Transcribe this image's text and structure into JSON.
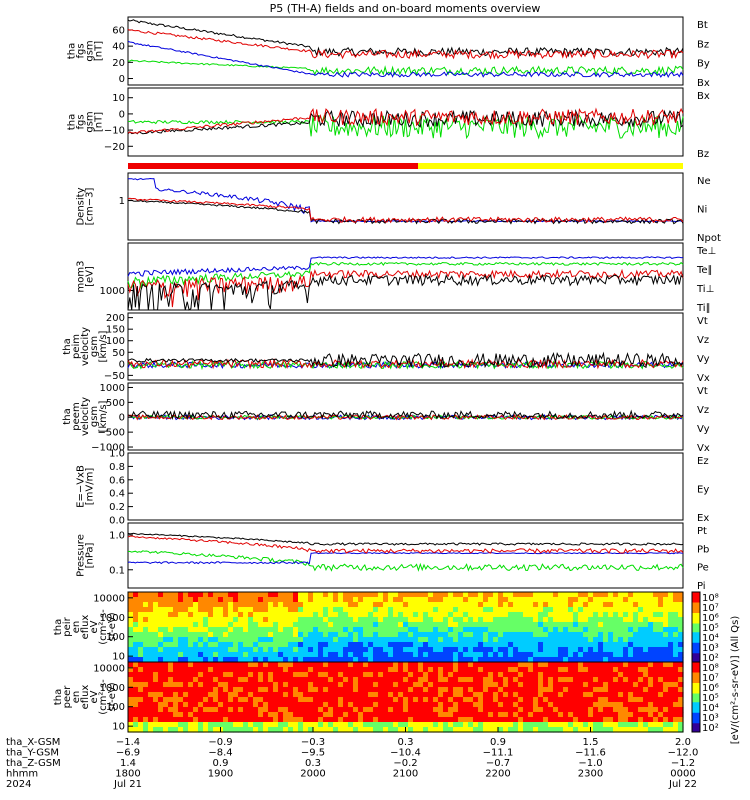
{
  "title": "P5 (TH-A) fields and on-board moments overview",
  "colors": {
    "black": "#000000",
    "red": "#e00000",
    "green": "#00dd00",
    "blue": "#0000dd",
    "lightgreen": "#66ff66",
    "yellow": "#ffff00"
  },
  "panels": [
    {
      "id": "bgse",
      "ylabel": [
        "tha",
        "fgs",
        "gsm",
        "[nT]"
      ],
      "yticks": [
        "60",
        "40",
        "20",
        "0"
      ],
      "yrange": [
        -8,
        76
      ],
      "yvals": [
        60,
        40,
        20,
        0
      ],
      "legend": [
        {
          "name": "Bt",
          "color": "black"
        },
        {
          "name": "Bz",
          "color": "red"
        },
        {
          "name": "By",
          "color": "green"
        },
        {
          "name": "Bx",
          "color": "blue"
        }
      ]
    },
    {
      "id": "bxy",
      "ylabel": [
        "tha",
        "fgs",
        "gsm",
        "[nT]"
      ],
      "yticks": [
        "10",
        "0",
        "−10",
        "−20"
      ],
      "yrange": [
        -26,
        16
      ],
      "yvals": [
        10,
        0,
        -10,
        -20
      ],
      "legend": [
        {
          "name": "Bx",
          "color": "black"
        },
        {
          "name": "Bz",
          "color": "red"
        }
      ]
    },
    {
      "id": "density",
      "ylabel": [
        "Density",
        "[cm−3]"
      ],
      "yticks": [
        "1"
      ],
      "yrange": [
        0.1,
        5
      ],
      "log": true,
      "yvals": [
        1
      ],
      "legend": [
        {
          "name": "Ne",
          "color": "red"
        },
        {
          "name": "Ni",
          "color": "black"
        },
        {
          "name": "Npot",
          "color": "blue"
        }
      ]
    },
    {
      "id": "temp",
      "ylabel": [
        "mom3",
        "[eV]"
      ],
      "yticks": [
        "1000"
      ],
      "yrange": [
        200,
        50000
      ],
      "log": true,
      "yvals": [
        1000
      ],
      "legend": [
        {
          "name": "Te⊥",
          "color": "red"
        },
        {
          "name": "Te∥",
          "color": "black"
        },
        {
          "name": "Ti⊥",
          "color": "blue"
        },
        {
          "name": "Ti∥",
          "color": "green"
        }
      ]
    },
    {
      "id": "vi",
      "ylabel": [
        "tha",
        "peim",
        "velocity",
        "gsm",
        "[km/s]"
      ],
      "yticks": [
        "200",
        "150",
        "100",
        "50",
        "0",
        "−50"
      ],
      "yrange": [
        -70,
        220
      ],
      "yvals": [
        200,
        150,
        100,
        50,
        0,
        -50
      ],
      "legend": [
        {
          "name": "Vt",
          "color": "black"
        },
        {
          "name": "Vz",
          "color": "red"
        },
        {
          "name": "Vy",
          "color": "green"
        },
        {
          "name": "Vx",
          "color": "blue"
        }
      ]
    },
    {
      "id": "ve",
      "ylabel": [
        "tha",
        "peem",
        "velocity",
        "gsm",
        "[km/s]"
      ],
      "yticks": [
        "1000",
        "500",
        "0",
        "−500",
        "−1000"
      ],
      "yrange": [
        -1100,
        1150
      ],
      "yvals": [
        1000,
        500,
        0,
        -500,
        -1000
      ],
      "legend": [
        {
          "name": "Vt",
          "color": "black"
        },
        {
          "name": "Vz",
          "color": "red"
        },
        {
          "name": "Vy",
          "color": "green"
        },
        {
          "name": "Vx",
          "color": "blue"
        }
      ]
    },
    {
      "id": "efield",
      "ylabel": [
        "E=−VxB",
        "[mV/m]"
      ],
      "yticks": [
        "1.0",
        "0.8",
        "0.6",
        "0.4",
        "0.2",
        "0.0"
      ],
      "yrange": [
        0,
        1
      ],
      "yvals": [
        1,
        0.8,
        0.6,
        0.4,
        0.2,
        0
      ],
      "legend": [
        {
          "name": "Ez",
          "color": "red"
        },
        {
          "name": "Ey",
          "color": "green"
        },
        {
          "name": "Ex",
          "color": "blue"
        }
      ]
    },
    {
      "id": "pressure",
      "ylabel": [
        "Pressure",
        "[nPa]"
      ],
      "yticks": [
        "1.0",
        "0.1"
      ],
      "yrange": [
        0.03,
        2.2
      ],
      "log": true,
      "yvals": [
        1,
        0.1
      ],
      "legend": [
        {
          "name": "Pt",
          "color": "black"
        },
        {
          "name": "Pb",
          "color": "red"
        },
        {
          "name": "Pe",
          "color": "green"
        },
        {
          "name": "Pi",
          "color": "blue"
        }
      ]
    },
    {
      "id": "ionspec",
      "ylabel": [
        "tha",
        "peir",
        "en",
        "eflux",
        "eV",
        "(cm²-s-",
        "sr-eV)"
      ],
      "yticks": [
        "10000",
        "1000",
        "100",
        "10"
      ],
      "yrange": [
        5,
        20000
      ],
      "log": true,
      "yvals": [
        10000,
        1000,
        100,
        10
      ]
    },
    {
      "id": "elecspec",
      "ylabel": [
        "tha",
        "peer",
        "en",
        "eflux",
        "eV",
        "(cm²-s-",
        "sr-eV)"
      ],
      "yticks": [
        "10000",
        "1000",
        "100",
        "10"
      ],
      "yrange": [
        5,
        20000
      ],
      "log": true,
      "yvals": [
        10000,
        1000,
        100,
        10
      ]
    }
  ],
  "colorbar": {
    "label": "[eV/(cm²-s-sr-eV)] (All Qs)",
    "ticks": [
      "10⁸",
      "10⁷",
      "10⁶",
      "10⁵",
      "10⁴",
      "10³",
      "10²"
    ]
  },
  "colorbar2_ticks": [
    "10⁸",
    "10⁷",
    "10⁶",
    "10⁵",
    "10⁴",
    "10³",
    "10²"
  ],
  "xaxis": {
    "rows": [
      {
        "name": "tha_X-GSM",
        "values": [
          "−1.4",
          "−0.9",
          "−0.3",
          "0.3",
          "0.9",
          "1.5",
          "2.0"
        ]
      },
      {
        "name": "tha_Y-GSM",
        "values": [
          "−6.9",
          "−8.4",
          "−9.5",
          "−10.4",
          "−11.1",
          "−11.6",
          "−12.0"
        ]
      },
      {
        "name": "tha_Z-GSM",
        "values": [
          "1.4",
          "0.9",
          "0.3",
          "−0.2",
          "−0.7",
          "−1.0",
          "−1.2"
        ]
      },
      {
        "name": "hhmm",
        "values": [
          "1800",
          "1900",
          "2000",
          "2100",
          "2200",
          "2300",
          "0000"
        ]
      },
      {
        "name": "2024",
        "values": [
          "Jul 21",
          "",
          "",
          "",
          "",
          "",
          "Jul 22"
        ]
      }
    ]
  },
  "chart_data": {
    "type": "line",
    "title": "P5 (TH-A) fields and on-board moments overview",
    "x": [
      "1800",
      "1900",
      "2000",
      "2100",
      "2200",
      "2300",
      "0000"
    ],
    "series": [
      {
        "name": "Bt",
        "values": [
          72,
          45,
          35,
          30,
          30,
          30,
          28
        ]
      },
      {
        "name": "Bz",
        "values": [
          60,
          40,
          32,
          28,
          28,
          28,
          26
        ]
      },
      {
        "name": "By",
        "values": [
          20,
          15,
          8,
          12,
          10,
          10,
          10
        ]
      },
      {
        "name": "Bx",
        "values": [
          45,
          25,
          5,
          2,
          2,
          2,
          2
        ]
      },
      {
        "name": "Ne",
        "values": [
          1,
          0.7,
          0.35,
          0.3,
          0.35,
          0.35,
          0.35
        ]
      },
      {
        "name": "Npot",
        "values": [
          3,
          1,
          0.5,
          0.3,
          0.3,
          0.3,
          0.3
        ]
      },
      {
        "name": "Pt",
        "values": [
          1.0,
          0.7,
          0.5,
          0.5,
          0.5,
          0.5,
          0.45
        ]
      },
      {
        "name": "Pb",
        "values": [
          0.9,
          0.55,
          0.35,
          0.35,
          0.35,
          0.35,
          0.3
        ]
      },
      {
        "name": "Pe",
        "values": [
          0.4,
          0.25,
          0.12,
          0.15,
          0.15,
          0.15,
          0.12
        ]
      },
      {
        "name": "Pi",
        "values": [
          0.16,
          0.15,
          0.3,
          0.3,
          0.3,
          0.3,
          0.3
        ]
      }
    ]
  }
}
